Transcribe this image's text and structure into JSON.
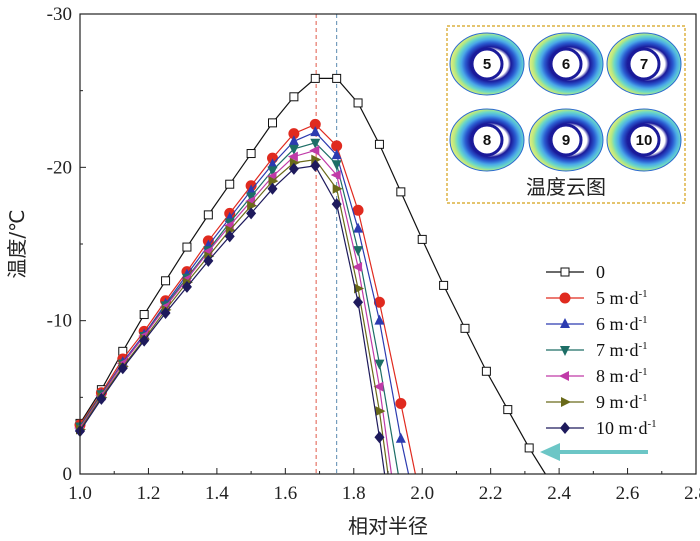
{
  "chart_data": {
    "type": "line",
    "xlabel": "相对半径",
    "ylabel": "温度/℃",
    "xlim": [
      1.0,
      2.8
    ],
    "ylim": [
      0,
      -30
    ],
    "xticks": [
      "1.0",
      "1.2",
      "1.4",
      "1.6",
      "1.8",
      "2.0",
      "2.2",
      "2.4",
      "2.6",
      "2.8"
    ],
    "yticks": [
      "0",
      "-10",
      "-20",
      "-30"
    ],
    "legend_position": "right",
    "reference_lines_x": [
      1.69,
      1.75
    ],
    "series": [
      {
        "name": "0",
        "color": "#111111",
        "marker": "square-open",
        "x": [
          1.0,
          1.0625,
          1.125,
          1.1875,
          1.25,
          1.3125,
          1.375,
          1.4375,
          1.5,
          1.5625,
          1.625,
          1.6875,
          1.75,
          1.8125,
          1.875,
          1.9375,
          2.0,
          2.0625,
          2.125,
          2.1875,
          2.25,
          2.3125,
          2.36
        ],
        "y": [
          -3.3,
          -5.5,
          -8.0,
          -10.4,
          -12.6,
          -14.8,
          -16.9,
          -18.9,
          -20.9,
          -22.9,
          -24.6,
          -25.8,
          -25.8,
          -24.2,
          -21.5,
          -18.4,
          -15.3,
          -12.3,
          -9.5,
          -6.7,
          -4.2,
          -1.7,
          0
        ]
      },
      {
        "name": "5 m·d⁻¹",
        "color": "#e02a1f",
        "marker": "circle",
        "x": [
          1.0,
          1.0625,
          1.125,
          1.1875,
          1.25,
          1.3125,
          1.375,
          1.4375,
          1.5,
          1.5625,
          1.625,
          1.6875,
          1.75,
          1.8125,
          1.875,
          1.9375,
          1.98
        ],
        "y": [
          -3.2,
          -5.3,
          -7.5,
          -9.3,
          -11.3,
          -13.2,
          -15.2,
          -17.0,
          -18.8,
          -20.6,
          -22.2,
          -22.8,
          -21.4,
          -17.2,
          -11.2,
          -4.6,
          0
        ]
      },
      {
        "name": "6 m·d⁻¹",
        "color": "#2c3bb0",
        "marker": "triangle-up",
        "x": [
          1.0,
          1.0625,
          1.125,
          1.1875,
          1.25,
          1.3125,
          1.375,
          1.4375,
          1.5,
          1.5625,
          1.625,
          1.6875,
          1.75,
          1.8125,
          1.875,
          1.9375,
          1.96
        ],
        "y": [
          -3.1,
          -5.2,
          -7.3,
          -9.1,
          -11.1,
          -13.0,
          -14.9,
          -16.7,
          -18.5,
          -20.2,
          -21.7,
          -22.3,
          -20.8,
          -16.0,
          -10.0,
          -2.3,
          0
        ]
      },
      {
        "name": "7 m·d⁻¹",
        "color": "#1d6e66",
        "marker": "triangle-down",
        "x": [
          1.0,
          1.0625,
          1.125,
          1.1875,
          1.25,
          1.3125,
          1.375,
          1.4375,
          1.5,
          1.5625,
          1.625,
          1.6875,
          1.75,
          1.8125,
          1.875,
          1.93
        ],
        "y": [
          -3.1,
          -5.2,
          -7.2,
          -9.0,
          -11.0,
          -12.8,
          -14.6,
          -16.4,
          -18.1,
          -19.8,
          -21.2,
          -21.6,
          -20.2,
          -14.6,
          -7.2,
          0
        ]
      },
      {
        "name": "8 m·d⁻¹",
        "color": "#c03aa8",
        "marker": "triangle-left",
        "x": [
          1.0,
          1.0625,
          1.125,
          1.1875,
          1.25,
          1.3125,
          1.375,
          1.4375,
          1.5,
          1.5625,
          1.625,
          1.6875,
          1.75,
          1.8125,
          1.875,
          1.91
        ],
        "y": [
          -3.0,
          -5.1,
          -7.2,
          -9.0,
          -10.9,
          -12.7,
          -14.5,
          -16.2,
          -17.8,
          -19.4,
          -20.7,
          -21.1,
          -19.5,
          -13.5,
          -5.7,
          0
        ]
      },
      {
        "name": "9 m·d⁻¹",
        "color": "#6a6a1a",
        "marker": "triangle-right",
        "x": [
          1.0,
          1.0625,
          1.125,
          1.1875,
          1.25,
          1.3125,
          1.375,
          1.4375,
          1.5,
          1.5625,
          1.625,
          1.6875,
          1.75,
          1.8125,
          1.875,
          1.9
        ],
        "y": [
          -2.9,
          -5.0,
          -7.0,
          -8.8,
          -10.7,
          -12.5,
          -14.2,
          -15.9,
          -17.5,
          -19.1,
          -20.3,
          -20.5,
          -18.6,
          -12.1,
          -4.1,
          0
        ]
      },
      {
        "name": "10 m·d⁻¹",
        "color": "#1e1a5c",
        "marker": "diamond",
        "x": [
          1.0,
          1.0625,
          1.125,
          1.1875,
          1.25,
          1.3125,
          1.375,
          1.4375,
          1.5,
          1.5625,
          1.625,
          1.6875,
          1.75,
          1.8125,
          1.875,
          1.89
        ],
        "y": [
          -2.8,
          -4.9,
          -6.9,
          -8.7,
          -10.5,
          -12.2,
          -13.9,
          -15.5,
          -17.0,
          -18.6,
          -19.9,
          -20.1,
          -17.6,
          -11.2,
          -2.4,
          0
        ]
      }
    ]
  },
  "legend": {
    "items": [
      {
        "label": "0",
        "sup": ""
      },
      {
        "label": "5 m·d",
        "sup": "-1"
      },
      {
        "label": "6 m·d",
        "sup": "-1"
      },
      {
        "label": "7 m·d",
        "sup": "-1"
      },
      {
        "label": "8 m·d",
        "sup": "-1"
      },
      {
        "label": "9 m·d",
        "sup": "-1"
      },
      {
        "label": "10 m·d",
        "sup": "-1"
      }
    ]
  },
  "inset": {
    "title": "温度云图",
    "clouds": [
      "5",
      "6",
      "7",
      "8",
      "9",
      "10"
    ]
  }
}
